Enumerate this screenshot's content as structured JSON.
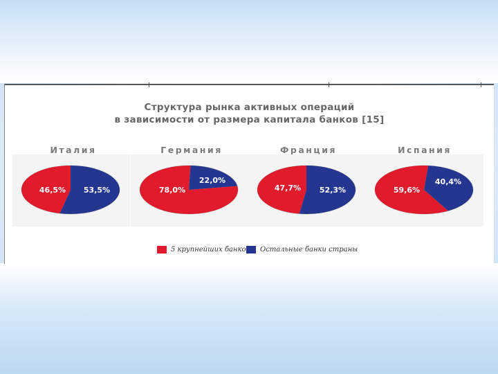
{
  "chart_data": {
    "type": "pie",
    "title": "Структура рынка активных операций",
    "subtitle": "в зависимости от размера капитала банков [15]",
    "legend": [
      {
        "label": "5 крупнейших банков",
        "color": "#e11b2b"
      },
      {
        "label": "Остальные банки страны",
        "color": "#24368f"
      }
    ],
    "pies": [
      {
        "country": "Италия",
        "values": [
          46.5,
          53.5
        ],
        "labels": [
          "46,5%",
          "53,5%"
        ]
      },
      {
        "country": "Германия",
        "values": [
          78.0,
          22.0
        ],
        "labels": [
          "78,0%",
          "22,0%"
        ]
      },
      {
        "country": "Франция",
        "values": [
          47.7,
          52.3
        ],
        "labels": [
          "47,7%",
          "52,3%"
        ]
      },
      {
        "country": "Испания",
        "values": [
          59.6,
          40.4
        ],
        "labels": [
          "59,6%",
          "40,4%"
        ]
      }
    ]
  }
}
